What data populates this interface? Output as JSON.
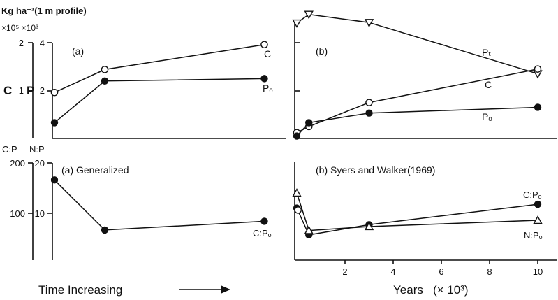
{
  "figure": {
    "units_label": "Kg ha⁻¹(1 m profile)",
    "multipliers_label": "×10⁵  ×10³",
    "top_left_axis_c": "C",
    "top_left_axis_p": "P",
    "bottom_left_axis_cp": "C:P",
    "bottom_left_axis_np": "N:P",
    "left_xlabel": "Time Increasing",
    "right_xlabel": "Years   (× 10³)"
  },
  "chart_data": [
    {
      "id": "top-left",
      "panel_label": "(a)",
      "type": "line",
      "x_scale": "relative time (unlabeled)",
      "xlim": [
        0,
        10
      ],
      "y_ticks_C": [
        "1",
        "2"
      ],
      "y_ticks_P": [
        "2",
        "4"
      ],
      "ylim": [
        0,
        2
      ],
      "series": [
        {
          "name": "C",
          "marker": "open-circle",
          "x": [
            0,
            2.3,
            9.6
          ],
          "y": [
            0.96,
            1.44,
            1.96
          ]
        },
        {
          "name": "Pₒ",
          "marker": "filled-circle",
          "x": [
            0,
            2.3,
            9.6
          ],
          "y": [
            0.33,
            1.2,
            1.25
          ]
        }
      ]
    },
    {
      "id": "top-right",
      "panel_label": "(b)",
      "type": "line",
      "xlim": [
        0,
        10.3
      ],
      "ylim": [
        0,
        2.67
      ],
      "series": [
        {
          "name": "Pₜ",
          "marker": "open-triangle-down",
          "x": [
            0,
            0.5,
            3,
            10
          ],
          "y": [
            2.41,
            2.59,
            2.42,
            1.35
          ]
        },
        {
          "name": "C",
          "marker": "open-circle",
          "x": [
            0,
            0.5,
            3,
            10
          ],
          "y": [
            0.12,
            0.25,
            0.75,
            1.45
          ]
        },
        {
          "name": "Pₒ",
          "marker": "filled-circle",
          "x": [
            0,
            0.5,
            3,
            10
          ],
          "y": [
            0.05,
            0.33,
            0.53,
            0.65
          ]
        }
      ]
    },
    {
      "id": "bottom-left",
      "panel_label": "(a) Generalized",
      "type": "line",
      "x_scale": "relative time (unlabeled)",
      "xlim": [
        0,
        10
      ],
      "y_ticks_CP": [
        "100",
        "200"
      ],
      "y_ticks_NP": [
        "10",
        "20"
      ],
      "ylim": [
        0,
        200
      ],
      "series": [
        {
          "name": "C:Pₒ",
          "marker": "filled-circle",
          "x": [
            0,
            2.3,
            9.6
          ],
          "y": [
            165,
            62,
            80
          ]
        }
      ]
    },
    {
      "id": "bottom-right",
      "panel_label": "(b) Syers and Walker(1969)",
      "type": "line",
      "xlim": [
        0,
        10.3
      ],
      "x_ticks": [
        "2",
        "4",
        "6",
        "8",
        "10"
      ],
      "ylim": [
        0,
        200
      ],
      "series": [
        {
          "name": "C:Pₒ",
          "marker": "filled-circle",
          "x": [
            0,
            0.5,
            3,
            10
          ],
          "y": [
            107,
            52,
            73,
            115
          ]
        },
        {
          "name": "N:Pₒ",
          "marker": "open-triangle-up",
          "x": [
            0,
            0.5,
            3,
            10
          ],
          "y": [
            138,
            61,
            69,
            82
          ]
        },
        {
          "name": "",
          "marker": "open-circle",
          "x": [
            0.05
          ],
          "y": [
            103
          ]
        }
      ]
    }
  ]
}
